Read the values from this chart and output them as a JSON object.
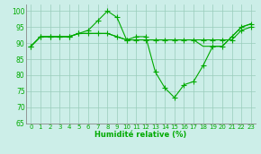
{
  "xlabel": "Humidité relative (%)",
  "xlim": [
    -0.5,
    23.5
  ],
  "ylim": [
    65,
    102
  ],
  "yticks": [
    65,
    70,
    75,
    80,
    85,
    90,
    95,
    100
  ],
  "xticks": [
    0,
    1,
    2,
    3,
    4,
    5,
    6,
    7,
    8,
    9,
    10,
    11,
    12,
    13,
    14,
    15,
    16,
    17,
    18,
    19,
    20,
    21,
    22,
    23
  ],
  "bg_color": "#cceee8",
  "line_color": "#00aa00",
  "markersize": 2.5,
  "series1": [
    89,
    92,
    92,
    92,
    92,
    93,
    94,
    97,
    100,
    98,
    91,
    92,
    92,
    81,
    76,
    73,
    77,
    78,
    83,
    89,
    89,
    92,
    95,
    96
  ],
  "series2": [
    89,
    92,
    92,
    92,
    92,
    93,
    93,
    93,
    93,
    92,
    91,
    91,
    91,
    91,
    91,
    91,
    91,
    91,
    91,
    91,
    91,
    91,
    94,
    95
  ],
  "series3": [
    89,
    92,
    92,
    92,
    92,
    93,
    93,
    93,
    93,
    92,
    91,
    91,
    91,
    91,
    91,
    91,
    91,
    91,
    89,
    89,
    89,
    92,
    95,
    96
  ],
  "font_color": "#00aa00",
  "grid_color": "#99ccbb"
}
